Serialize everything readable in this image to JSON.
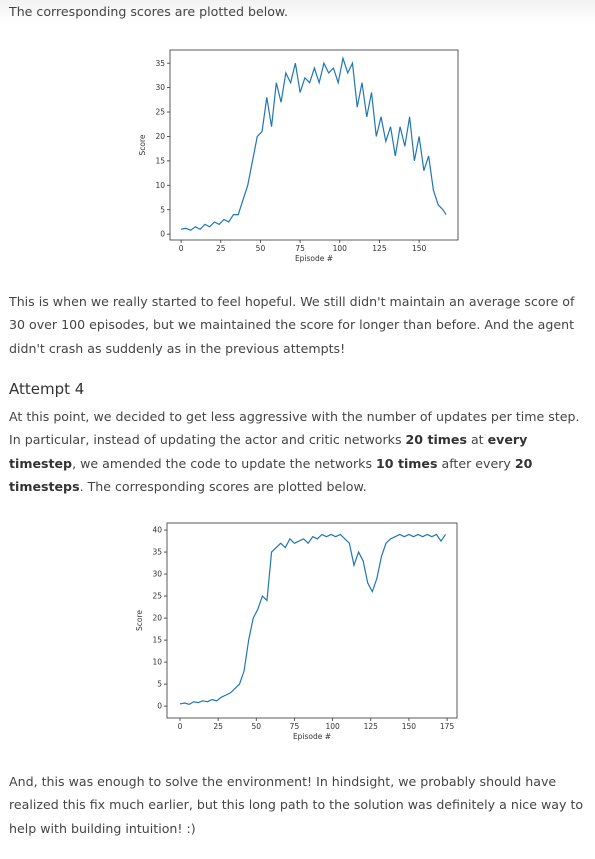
{
  "intro": "The corresponding scores are plotted below.",
  "paragraph_1": [
    {
      "text": "This is when we really started to feel hopeful. We still didn't maintain an average score of 30 over 100 episodes, but we maintained the score for longer than before. And the agent didn't crash as suddenly as in the previous attempts!"
    }
  ],
  "heading": "Attempt 4",
  "paragraph_2": [
    {
      "text": "At this point, we decided to get less aggressive with the number of updates per time step. In particular, instead of updating the actor and critic networks "
    },
    {
      "text": "20 times",
      "bold": true
    },
    {
      "text": " at "
    },
    {
      "text": "every timestep",
      "bold": true
    },
    {
      "text": ", we amended the code to update the networks "
    },
    {
      "text": "10 times",
      "bold": true
    },
    {
      "text": " after every "
    },
    {
      "text": "20 timesteps",
      "bold": true
    },
    {
      "text": ". The corresponding scores are plotted below."
    }
  ],
  "paragraph_3": [
    {
      "text": "And, this was enough to solve the environment! In hindsight, we probably should have realized this fix much earlier, but this long path to the solution was definitely a nice way to help with building intuition! :)"
    }
  ],
  "chart_data": [
    {
      "type": "line",
      "xlabel": "Episode #",
      "ylabel": "Score",
      "color": "#1f77b4",
      "x": [
        0,
        3,
        6,
        9,
        12,
        15,
        18,
        21,
        24,
        27,
        30,
        33,
        36,
        39,
        42,
        45,
        48,
        51,
        54,
        57,
        60,
        63,
        66,
        69,
        72,
        75,
        78,
        81,
        84,
        87,
        90,
        93,
        96,
        99,
        102,
        105,
        108,
        111,
        114,
        117,
        120,
        123,
        126,
        129,
        132,
        135,
        138,
        141,
        144,
        147,
        150,
        153,
        156,
        159,
        162,
        165,
        167
      ],
      "values": [
        1,
        1.2,
        0.8,
        1.5,
        1,
        2,
        1.5,
        2.5,
        2,
        3,
        2.5,
        4,
        4,
        7,
        10,
        15,
        20,
        21,
        28,
        22,
        31,
        27,
        33,
        31,
        35,
        29,
        32,
        31,
        34,
        31,
        35,
        33,
        34,
        31,
        36,
        33,
        35,
        26,
        31,
        24,
        29,
        20,
        24,
        19,
        22,
        16,
        22,
        18,
        24,
        15,
        20,
        13,
        16,
        9,
        6,
        5,
        4
      ],
      "xlim": [
        -7,
        174.5
      ],
      "ylim": [
        -1.2,
        37.7
      ],
      "xticks": [
        0,
        25,
        50,
        75,
        100,
        125,
        150
      ],
      "yticks": [
        0,
        5,
        10,
        15,
        20,
        25,
        30,
        35
      ]
    },
    {
      "type": "line",
      "xlabel": "Episode #",
      "ylabel": "Score",
      "color": "#1f77b4",
      "x": [
        0,
        3,
        6,
        9,
        12,
        15,
        18,
        21,
        24,
        27,
        30,
        33,
        36,
        39,
        42,
        45,
        48,
        51,
        54,
        57,
        60,
        63,
        66,
        69,
        72,
        75,
        78,
        81,
        84,
        87,
        90,
        93,
        96,
        99,
        102,
        105,
        108,
        111,
        114,
        117,
        120,
        123,
        126,
        129,
        132,
        135,
        138,
        141,
        144,
        147,
        150,
        153,
        156,
        159,
        162,
        165,
        168,
        171,
        174
      ],
      "values": [
        0.5,
        0.7,
        0.4,
        1,
        0.8,
        1.2,
        1,
        1.5,
        1.2,
        2,
        2.5,
        3,
        4,
        5,
        8,
        15,
        20,
        22,
        25,
        24,
        35,
        36,
        37,
        36,
        38,
        37,
        37.5,
        38,
        37,
        38.5,
        38,
        39,
        38.5,
        39,
        38.5,
        39,
        38,
        37,
        32,
        35,
        33,
        28,
        26,
        29,
        34,
        37,
        38,
        38.5,
        39,
        38.5,
        39,
        38.5,
        39,
        38.5,
        39,
        38.5,
        39,
        37.5,
        39
      ],
      "xlim": [
        -8.5,
        181.5
      ],
      "ylim": [
        -2.7,
        41.6
      ],
      "xticks": [
        0,
        25,
        50,
        75,
        100,
        125,
        150,
        175
      ],
      "yticks": [
        0,
        5,
        10,
        15,
        20,
        25,
        30,
        35,
        40
      ]
    }
  ]
}
